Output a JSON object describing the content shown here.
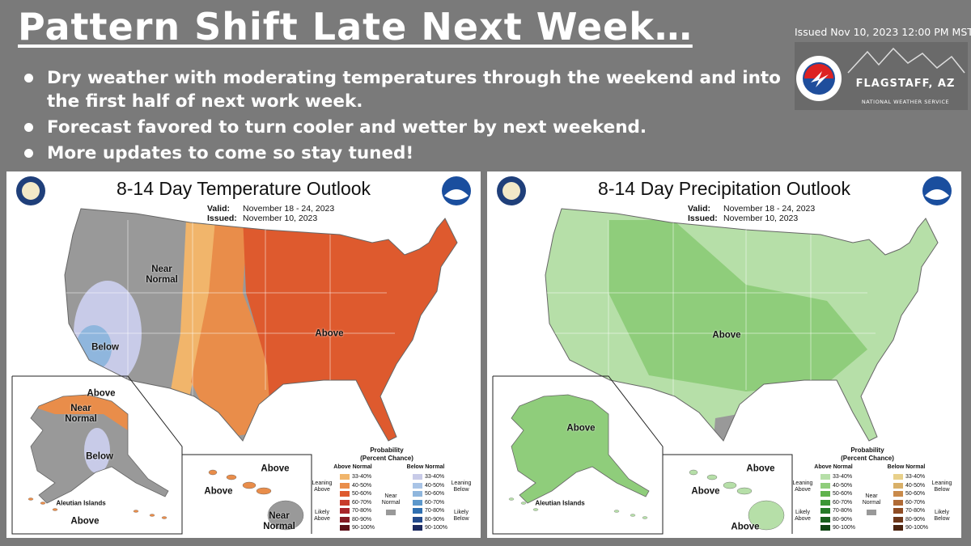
{
  "header": {
    "title": "Pattern Shift Late Next Week…",
    "bullets": [
      "Dry weather with moderating temperatures through the weekend and into the first half of next work week.",
      "Forecast favored to turn cooler and wetter by next weekend.",
      "More updates to come so stay tuned!"
    ],
    "issued": "Issued Nov 10, 2023 12:00 PM MST",
    "office": "FLAGSTAFF, AZ",
    "agency": "NATIONAL WEATHER SERVICE"
  },
  "maps": [
    {
      "kind": "temperature",
      "title": "8-14 Day Temperature Outlook",
      "valid": "Valid:",
      "valid_dates": "November 18 - 24, 2023",
      "issued": "Issued:",
      "issued_date": "November 10, 2023",
      "logo": "NOAA",
      "labels": [
        "Near Normal",
        "Above",
        "Below",
        "Above",
        "Near Normal",
        "Below",
        "Aleutian Islands",
        "Above",
        "Above",
        "Above",
        "Near Normal"
      ],
      "legend": {
        "title": "Probability",
        "subtitle": "(Percent Chance)",
        "above_header": "Above Normal",
        "below_header": "Below Normal",
        "bins": [
          "33-40%",
          "40-50%",
          "50-60%",
          "60-70%",
          "70-80%",
          "80-90%",
          "90-100%"
        ],
        "above_colors": [
          "#f1b56b",
          "#e98d4a",
          "#de5a2e",
          "#c83a2a",
          "#a8242a",
          "#861a24",
          "#5e1018"
        ],
        "below_colors": [
          "#c8cbe8",
          "#a9c4e6",
          "#8fb6dd",
          "#5c98cc",
          "#2f6fb0",
          "#234a8c",
          "#1c2a60"
        ],
        "leaning_above": "Leaning Above",
        "likely_above": "Likely Above",
        "near_normal": "Near Normal",
        "near_color": "#999999",
        "leaning_below": "Leaning Below",
        "likely_below": "Likely Below"
      }
    },
    {
      "kind": "precipitation",
      "title": "8-14 Day Precipitation Outlook",
      "valid": "Valid:",
      "valid_dates": "November 18 - 24, 2023",
      "issued": "Issued:",
      "issued_date": "November 10, 2023",
      "logo": "NOAA",
      "labels": [
        "Above",
        "Above",
        "Aleutian Islands",
        "Above",
        "Above",
        "Above"
      ],
      "legend": {
        "title": "Probability",
        "subtitle": "(Percent Chance)",
        "above_header": "Above Normal",
        "below_header": "Below Normal",
        "bins": [
          "33-40%",
          "40-50%",
          "50-60%",
          "60-70%",
          "70-80%",
          "80-90%",
          "90-100%"
        ],
        "above_colors": [
          "#b6dfa8",
          "#8fcd7b",
          "#5fb34d",
          "#3b9736",
          "#257a28",
          "#19601e",
          "#104514"
        ],
        "below_colors": [
          "#e8d08a",
          "#d9b068",
          "#c98a4a",
          "#b06a35",
          "#8f4d25",
          "#6e371a",
          "#4c2410"
        ],
        "leaning_above": "Leaning Above",
        "likely_above": "Likely Above",
        "near_normal": "Near Normal",
        "near_color": "#999999",
        "leaning_below": "Leaning Below",
        "likely_below": "Likely Below"
      }
    }
  ]
}
